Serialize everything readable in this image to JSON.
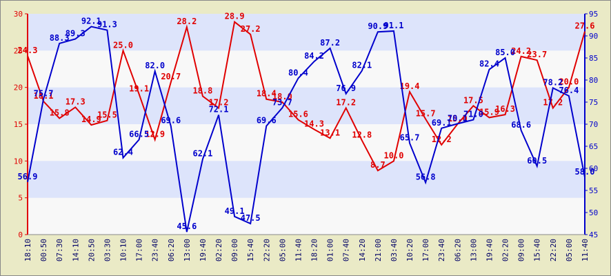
{
  "chart_data": {
    "type": "line",
    "categories": [
      "18:10",
      "00:50",
      "07:30",
      "14:10",
      "20:50",
      "03:30",
      "10:10",
      "17:00",
      "23:40",
      "06:20",
      "13:00",
      "19:40",
      "02:20",
      "09:00",
      "15:40",
      "22:20",
      "05:00",
      "11:40",
      "18:20",
      "01:00",
      "07:40",
      "14:20",
      "21:00",
      "03:40",
      "10:20",
      "17:00",
      "23:40",
      "06:20",
      "13:00",
      "19:40",
      "02:20",
      "09:00",
      "15:40",
      "22:20",
      "05:00",
      "11:40"
    ],
    "series": [
      {
        "color": "#e00000",
        "values": [
          24.3,
          18.1,
          15.8,
          17.3,
          14.9,
          15.5,
          25.0,
          19.1,
          12.9,
          20.7,
          28.2,
          18.8,
          17.2,
          28.9,
          27.2,
          18.4,
          18.0,
          15.6,
          14.3,
          13.1,
          17.2,
          12.8,
          8.7,
          10.0,
          19.4,
          15.7,
          12.2,
          15.0,
          17.5,
          15.9,
          16.3,
          24.2,
          23.7,
          17.2,
          20.0,
          27.6
        ],
        "value_labels": [
          "24.3",
          "18.1",
          "15.8",
          "17.3",
          "14.9",
          "15.5",
          "25.0",
          "19.1",
          "12.9",
          "20.7",
          "28.2",
          "18.8",
          "17.2",
          "28.9",
          "27.2",
          "18.4",
          "18.0",
          "15.6",
          "14.3",
          "13.1",
          "17.2",
          "12.8",
          "8.7",
          "10.0",
          "19.4",
          "15.7",
          "12.2",
          "15.0",
          "17.5",
          "15.9",
          "16.3",
          "24.2",
          "23.7",
          "17.2",
          "20.0",
          "27.6"
        ]
      },
      {
        "color": "#0000cc",
        "axis": "y2",
        "values": [
          56.9,
          75.7,
          88.3,
          89.3,
          92.1,
          91.3,
          62.4,
          66.5,
          82.0,
          69.6,
          45.6,
          62.1,
          72.1,
          49.1,
          47.5,
          69.6,
          73.7,
          80.4,
          84.2,
          87.2,
          76.9,
          82.1,
          90.9,
          91.1,
          65.7,
          56.8,
          69.1,
          70.1,
          71.0,
          82.4,
          85.0,
          68.6,
          60.5,
          78.2,
          76.4,
          58.0
        ],
        "value_labels": [
          "56.9",
          "75.7",
          "88.3",
          "89.3",
          "92.1",
          "91.3",
          "62.4",
          "66.5",
          "82.0",
          "69.6",
          "45.6",
          "62.1",
          "72.1",
          "49.1",
          "47.5",
          "69.6",
          "73.7",
          "80.4",
          "84.2",
          "87.2",
          "76.9",
          "82.1",
          "90.9",
          "91.1",
          "65.7",
          "56.8",
          "69.1",
          "70.1",
          "71.0",
          "82.4",
          "85.0",
          "68.6",
          "60.5",
          "78.2",
          "76.4",
          "58.0"
        ]
      }
    ],
    "ylim": [
      0,
      30
    ],
    "yticks": [
      0,
      5,
      10,
      15,
      20,
      25,
      30
    ],
    "y2lim": [
      45,
      95
    ],
    "y2ticks": [
      45,
      50,
      55,
      60,
      65,
      70,
      75,
      80,
      85,
      90,
      95
    ],
    "grid": true
  }
}
